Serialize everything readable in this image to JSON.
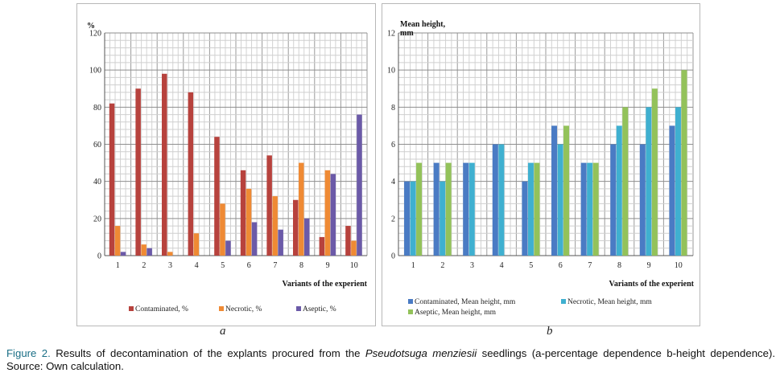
{
  "chart_data": [
    {
      "type": "bar",
      "panel_label": "a",
      "ylabel": "%",
      "xlabel": "Variants of the experient",
      "ylim": [
        0,
        120
      ],
      "y_ticks": [
        0,
        20,
        40,
        60,
        80,
        100,
        120
      ],
      "categories": [
        "1",
        "2",
        "3",
        "4",
        "5",
        "6",
        "7",
        "8",
        "9",
        "10"
      ],
      "grid": true,
      "legend_position": "bottom",
      "series": [
        {
          "name": "Contaminated, %",
          "color": "#b7423d",
          "values": [
            82,
            90,
            98,
            88,
            64,
            46,
            54,
            30,
            10,
            16
          ]
        },
        {
          "name": "Necrotic, %",
          "color": "#ef8a34",
          "values": [
            16,
            6,
            2,
            12,
            28,
            36,
            32,
            50,
            46,
            8
          ]
        },
        {
          "name": "Aseptic, %",
          "color": "#6b5aa8",
          "values": [
            2,
            4,
            0,
            0,
            8,
            18,
            14,
            20,
            44,
            76
          ]
        }
      ]
    },
    {
      "type": "bar",
      "panel_label": "b",
      "ylabel": "Mean height, mm",
      "xlabel": "Variants of the experient",
      "ylim": [
        0,
        12
      ],
      "y_ticks": [
        0,
        2,
        4,
        6,
        8,
        10,
        12
      ],
      "categories": [
        "1",
        "2",
        "3",
        "4",
        "5",
        "6",
        "7",
        "8",
        "9",
        "10"
      ],
      "grid": true,
      "legend_position": "bottom",
      "series": [
        {
          "name": "Contaminated, Mean height, mm",
          "color": "#4a7bc4",
          "values": [
            4,
            5,
            5,
            6,
            4,
            7,
            5,
            6,
            6,
            7
          ]
        },
        {
          "name": "Necrotic, Mean height, mm",
          "color": "#3fb0d0",
          "values": [
            4,
            4,
            5,
            6,
            5,
            6,
            5,
            7,
            8,
            8
          ]
        },
        {
          "name": "Aseptic, Mean height, mm",
          "color": "#93c25a",
          "values": [
            5,
            5,
            0,
            0,
            5,
            7,
            5,
            8,
            9,
            10
          ]
        }
      ]
    }
  ],
  "caption": {
    "figure_label": "Figure 2.",
    "text_before_species": " Results of decontamination of the explants procured from the ",
    "species": "Pseudotsuga menziesii",
    "text_after_species": " seedlings (a-percentage dependence b-height dependence). Source: Own calculation."
  }
}
